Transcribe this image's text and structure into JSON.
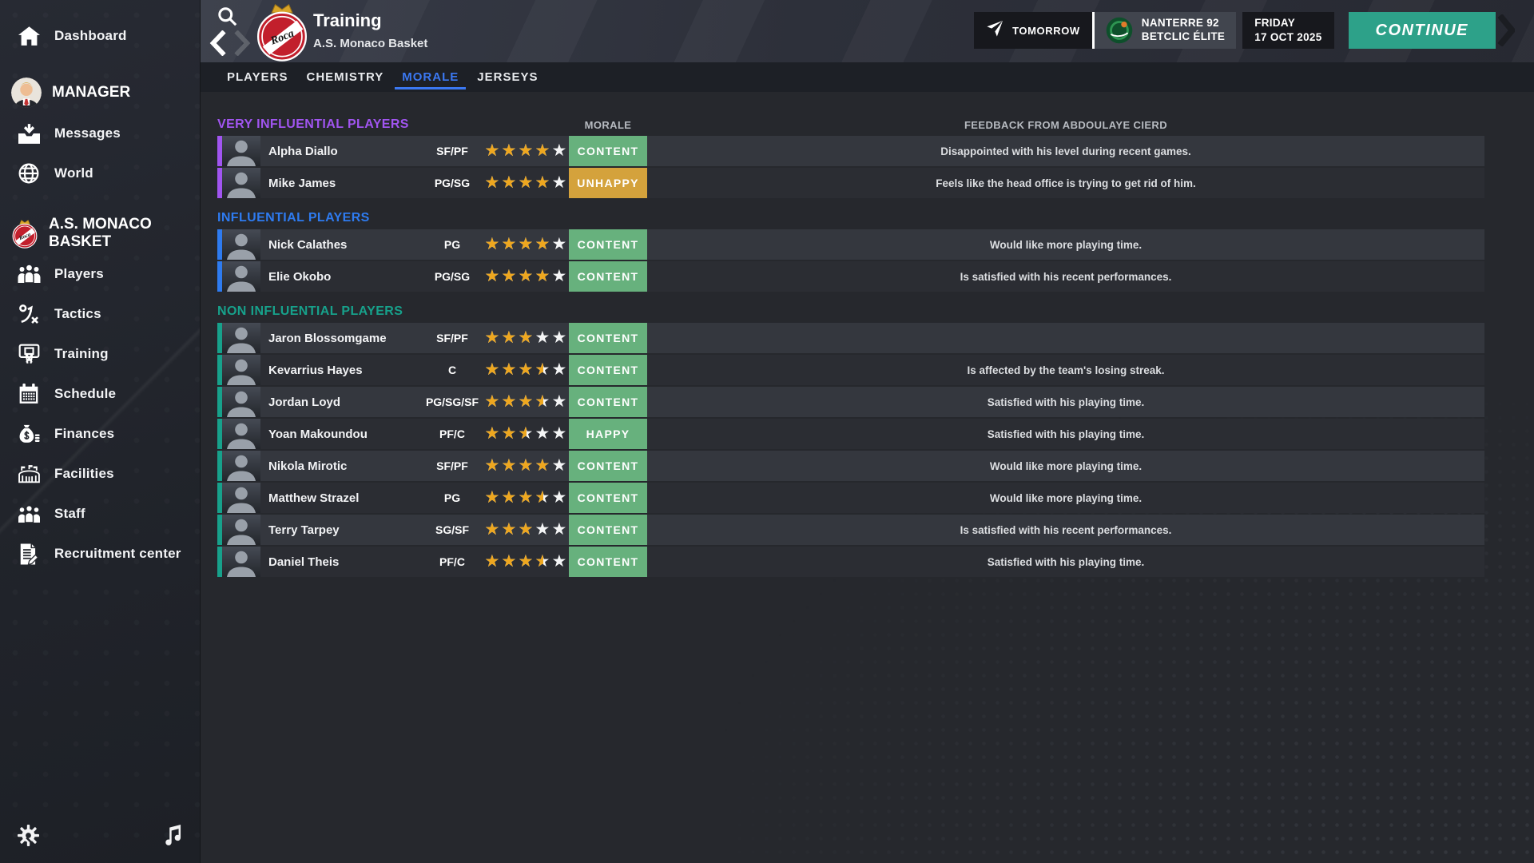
{
  "colors": {
    "accent_blue": "#3b78f2",
    "badge_green": "#67b17d",
    "badge_orange": "#d4a23c",
    "star_gold": "#eea71f",
    "continue_teal": "#2da189",
    "section_very_influential": "#a155f0",
    "section_influential": "#2e7bf0",
    "section_non_influential": "#17a18b"
  },
  "sidebar": {
    "items_top": [
      {
        "label": "Dashboard",
        "icon": "home-icon"
      }
    ],
    "manager": {
      "label": "MANAGER",
      "icon": "manager-avatar",
      "items": [
        {
          "label": "Messages",
          "icon": "inbox-icon"
        },
        {
          "label": "World",
          "icon": "globe-icon"
        }
      ]
    },
    "club": {
      "label": "A.S. MONACO BASKET",
      "icon": "club-crest",
      "items": [
        {
          "label": "Players",
          "icon": "players-icon"
        },
        {
          "label": "Tactics",
          "icon": "tactics-icon"
        },
        {
          "label": "Training",
          "icon": "training-icon"
        },
        {
          "label": "Schedule",
          "icon": "schedule-icon"
        },
        {
          "label": "Finances",
          "icon": "finances-icon"
        },
        {
          "label": "Facilities",
          "icon": "facilities-icon"
        },
        {
          "label": "Staff",
          "icon": "staff-icon"
        },
        {
          "label": "Recruitment center",
          "icon": "recruitment-icon"
        }
      ]
    },
    "footer_icons": [
      "settings-gear-icon",
      "music-note-icon"
    ]
  },
  "topbar": {
    "title": "Training",
    "subtitle": "A.S. Monaco Basket",
    "next_event": {
      "label": "TOMORROW",
      "icon": "plane-icon"
    },
    "next_match": {
      "team": "NANTERRE 92",
      "league": "BETCLIC ÉLITE",
      "icon": "opponent-logo"
    },
    "date": {
      "weekday": "FRIDAY",
      "full": "17 OCT 2025"
    },
    "continue_label": "CONTINUE"
  },
  "tabs": [
    {
      "label": "PLAYERS",
      "active": false
    },
    {
      "label": "CHEMISTRY",
      "active": false
    },
    {
      "label": "MORALE",
      "active": true
    },
    {
      "label": "JERSEYS",
      "active": false
    }
  ],
  "table": {
    "morale_header": "MORALE",
    "feedback_header": "FEEDBACK FROM ABDOULAYE CIERD",
    "sections": [
      {
        "title": "VERY INFLUENTIAL PLAYERS",
        "color_key": "section_very_influential",
        "players": [
          {
            "name": "Alpha Diallo",
            "position": "SF/PF",
            "stars": 4,
            "morale": "CONTENT",
            "morale_tone": "green",
            "feedback": "Disappointed with his level during recent games."
          },
          {
            "name": "Mike James",
            "position": "PG/SG",
            "stars": 4,
            "morale": "UNHAPPY",
            "morale_tone": "orange",
            "feedback": "Feels like the head office is trying to get rid of him."
          }
        ]
      },
      {
        "title": "INFLUENTIAL PLAYERS",
        "color_key": "section_influential",
        "players": [
          {
            "name": "Nick Calathes",
            "position": "PG",
            "stars": 4,
            "morale": "CONTENT",
            "morale_tone": "green",
            "feedback": "Would like more playing time."
          },
          {
            "name": "Elie Okobo",
            "position": "PG/SG",
            "stars": 4,
            "morale": "CONTENT",
            "morale_tone": "green",
            "feedback": "Is satisfied with his recent performances."
          }
        ]
      },
      {
        "title": "NON INFLUENTIAL PLAYERS",
        "color_key": "section_non_influential",
        "players": [
          {
            "name": "Jaron Blossomgame",
            "position": "SF/PF",
            "stars": 3,
            "morale": "CONTENT",
            "morale_tone": "green",
            "feedback": ""
          },
          {
            "name": "Kevarrius Hayes",
            "position": "C",
            "stars": 3.5,
            "morale": "CONTENT",
            "morale_tone": "green",
            "feedback": "Is affected by the team's losing streak."
          },
          {
            "name": "Jordan Loyd",
            "position": "PG/SG/SF",
            "stars": 3.5,
            "morale": "CONTENT",
            "morale_tone": "green",
            "feedback": "Satisfied with his playing time."
          },
          {
            "name": "Yoan Makoundou",
            "position": "PF/C",
            "stars": 2.5,
            "morale": "HAPPY",
            "morale_tone": "green",
            "feedback": "Satisfied with his playing time."
          },
          {
            "name": "Nikola Mirotic",
            "position": "SF/PF",
            "stars": 4,
            "morale": "CONTENT",
            "morale_tone": "green",
            "feedback": "Would like more playing time."
          },
          {
            "name": "Matthew Strazel",
            "position": "PG",
            "stars": 3.5,
            "morale": "CONTENT",
            "morale_tone": "green",
            "feedback": "Would like more playing time."
          },
          {
            "name": "Terry Tarpey",
            "position": "SG/SF",
            "stars": 3,
            "morale": "CONTENT",
            "morale_tone": "green",
            "feedback": "Is satisfied with his recent performances."
          },
          {
            "name": "Daniel Theis",
            "position": "PF/C",
            "stars": 3.5,
            "morale": "CONTENT",
            "morale_tone": "green",
            "feedback": "Satisfied with his playing time."
          }
        ]
      }
    ]
  }
}
